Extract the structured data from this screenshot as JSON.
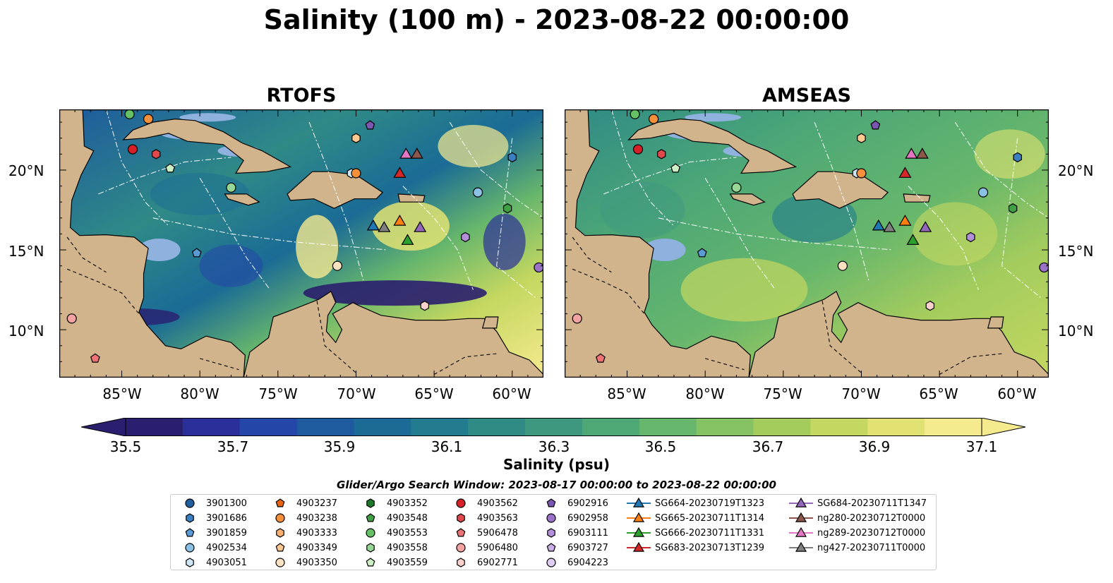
{
  "title": "Salinity (100 m) - 2023-08-22 00:00:00",
  "panels": {
    "left_title": "RTOFS",
    "right_title": "AMSEAS"
  },
  "axes": {
    "x_ticks": [
      "85°W",
      "80°W",
      "75°W",
      "70°W",
      "65°W",
      "60°W"
    ],
    "y_ticks_left": [
      "20°N",
      "15°N",
      "10°N"
    ],
    "y_ticks_right": [
      "20°N",
      "15°N",
      "10°N"
    ]
  },
  "colorbar": {
    "label": "Salinity (psu)",
    "ticks": [
      "35.5",
      "35.7",
      "35.9",
      "36.1",
      "36.3",
      "36.5",
      "36.7",
      "36.9",
      "37.1"
    ],
    "colors": [
      "#2a1e6e",
      "#2b2f9a",
      "#2446a8",
      "#1d5a9e",
      "#1b6b96",
      "#227b8e",
      "#2f8a86",
      "#3d987f",
      "#4ea876",
      "#66b66c",
      "#84c263",
      "#a3cc5d",
      "#c4d760",
      "#e2e272",
      "#f6ea8f"
    ],
    "extend": "both"
  },
  "legend": {
    "title": "Glider/Argo Search Window: 2023-08-17 00:00:00 to 2023-08-22 00:00:00",
    "columns": [
      [
        {
          "label": "3901300",
          "marker": "circle",
          "color": "#1f5f9e"
        },
        {
          "label": "3901686",
          "marker": "hexagon",
          "color": "#3a7fbf"
        },
        {
          "label": "3901859",
          "marker": "pentagon",
          "color": "#5b9bd5"
        },
        {
          "label": "4902534",
          "marker": "circle",
          "color": "#8cc1e6"
        },
        {
          "label": "4903051",
          "marker": "hexagon",
          "color": "#cfe6f6"
        }
      ],
      [
        {
          "label": "4903237",
          "marker": "pentagon",
          "color": "#e8650f"
        },
        {
          "label": "4903238",
          "marker": "circle",
          "color": "#f58f3a"
        },
        {
          "label": "4903333",
          "marker": "hexagon",
          "color": "#fab070"
        },
        {
          "label": "4903349",
          "marker": "pentagon",
          "color": "#fcc892"
        },
        {
          "label": "4903350",
          "marker": "circle",
          "color": "#fde2c2"
        }
      ],
      [
        {
          "label": "4903352",
          "marker": "hexagon",
          "color": "#1e7a2a"
        },
        {
          "label": "4903548",
          "marker": "pentagon",
          "color": "#3fa144"
        },
        {
          "label": "4903553",
          "marker": "circle",
          "color": "#66c066"
        },
        {
          "label": "4903558",
          "marker": "hexagon",
          "color": "#98d695"
        },
        {
          "label": "4903559",
          "marker": "pentagon",
          "color": "#ccefc4"
        }
      ],
      [
        {
          "label": "4903562",
          "marker": "circle",
          "color": "#d62028"
        },
        {
          "label": "4903563",
          "marker": "hexagon",
          "color": "#e0484c"
        },
        {
          "label": "5906478",
          "marker": "pentagon",
          "color": "#ee7377"
        },
        {
          "label": "5906480",
          "marker": "circle",
          "color": "#f4a3a3"
        },
        {
          "label": "6902771",
          "marker": "hexagon",
          "color": "#fad0cc"
        }
      ],
      [
        {
          "label": "6902916",
          "marker": "pentagon",
          "color": "#7c56b3"
        },
        {
          "label": "6902958",
          "marker": "circle",
          "color": "#9a72c7"
        },
        {
          "label": "6903111",
          "marker": "hexagon",
          "color": "#b28fd8"
        },
        {
          "label": "6903727",
          "marker": "pentagon",
          "color": "#c9afe6"
        },
        {
          "label": "6904223",
          "marker": "circle",
          "color": "#dfccf2"
        }
      ],
      [
        {
          "label": "SG664-20230719T1323",
          "marker": "triangle-line",
          "color": "#1f77b4"
        },
        {
          "label": "SG665-20230711T1314",
          "marker": "triangle-line",
          "color": "#ff7f0e"
        },
        {
          "label": "SG666-20230711T1331",
          "marker": "triangle-line",
          "color": "#2ca02c"
        },
        {
          "label": "SG683-20230713T1239",
          "marker": "triangle-line",
          "color": "#d62728"
        }
      ],
      [
        {
          "label": "SG684-20230711T1347",
          "marker": "triangle-line",
          "color": "#9467bd"
        },
        {
          "label": "ng280-20230712T0000",
          "marker": "triangle-line",
          "color": "#8c564b"
        },
        {
          "label": "ng289-20230712T0000",
          "marker": "triangle-line",
          "color": "#e377c2"
        },
        {
          "label": "ng427-20230711T0000",
          "marker": "triangle-line",
          "color": "#7f7f7f"
        }
      ]
    ]
  },
  "map_colors": {
    "land": "#d2b48c",
    "shelf": "#8fb1de",
    "deep_left": "#2a1e6e",
    "pacific_right": "#8fb1de"
  },
  "floats": [
    {
      "lon": -84.5,
      "lat": 23.5,
      "marker": "circle",
      "color": "#66c066"
    },
    {
      "lon": -83.3,
      "lat": 23.2,
      "marker": "circle",
      "color": "#f58f3a"
    },
    {
      "lon": -84.3,
      "lat": 21.3,
      "marker": "circle",
      "color": "#d62028"
    },
    {
      "lon": -82.8,
      "lat": 21.0,
      "marker": "hexagon",
      "color": "#e0484c"
    },
    {
      "lon": -81.9,
      "lat": 20.1,
      "marker": "pentagon",
      "color": "#ccefc4"
    },
    {
      "lon": -78.0,
      "lat": 18.9,
      "marker": "circle",
      "color": "#98d695"
    },
    {
      "lon": -70.0,
      "lat": 22.0,
      "marker": "hexagon",
      "color": "#fcc892"
    },
    {
      "lon": -69.1,
      "lat": 22.8,
      "marker": "pentagon",
      "color": "#7c56b3"
    },
    {
      "lon": -70.3,
      "lat": 19.8,
      "marker": "hexagon",
      "color": "#cfe6f6"
    },
    {
      "lon": -70.0,
      "lat": 19.8,
      "marker": "circle",
      "color": "#f58f3a"
    },
    {
      "lon": -60.0,
      "lat": 20.8,
      "marker": "hexagon",
      "color": "#3a7fbf"
    },
    {
      "lon": -62.2,
      "lat": 18.6,
      "marker": "circle",
      "color": "#8cc1e6"
    },
    {
      "lon": -60.3,
      "lat": 17.6,
      "marker": "hexagon",
      "color": "#3fa144"
    },
    {
      "lon": -63.0,
      "lat": 15.8,
      "marker": "hexagon",
      "color": "#b28fd8"
    },
    {
      "lon": -58.3,
      "lat": 13.9,
      "marker": "circle",
      "color": "#9a72c7"
    },
    {
      "lon": -71.2,
      "lat": 14.0,
      "marker": "circle",
      "color": "#fde2c2"
    },
    {
      "lon": -80.2,
      "lat": 14.8,
      "marker": "pentagon",
      "color": "#5b9bd5"
    },
    {
      "lon": -65.6,
      "lat": 11.5,
      "marker": "hexagon",
      "color": "#fad0cc"
    },
    {
      "lon": -88.2,
      "lat": 10.7,
      "marker": "circle",
      "color": "#f4a3a3"
    },
    {
      "lon": -86.7,
      "lat": 8.2,
      "marker": "pentagon",
      "color": "#ee7377"
    }
  ],
  "gliders": [
    {
      "lon": -66.8,
      "lat": 21.0,
      "color": "#e377c2"
    },
    {
      "lon": -66.1,
      "lat": 21.0,
      "color": "#8c564b"
    },
    {
      "lon": -67.2,
      "lat": 19.8,
      "color": "#d62728"
    },
    {
      "lon": -68.9,
      "lat": 16.5,
      "color": "#1f77b4"
    },
    {
      "lon": -68.2,
      "lat": 16.4,
      "color": "#7f7f7f"
    },
    {
      "lon": -67.2,
      "lat": 16.8,
      "color": "#ff7f0e"
    },
    {
      "lon": -65.9,
      "lat": 16.4,
      "color": "#9467bd"
    },
    {
      "lon": -66.7,
      "lat": 15.6,
      "color": "#2ca02c"
    }
  ]
}
